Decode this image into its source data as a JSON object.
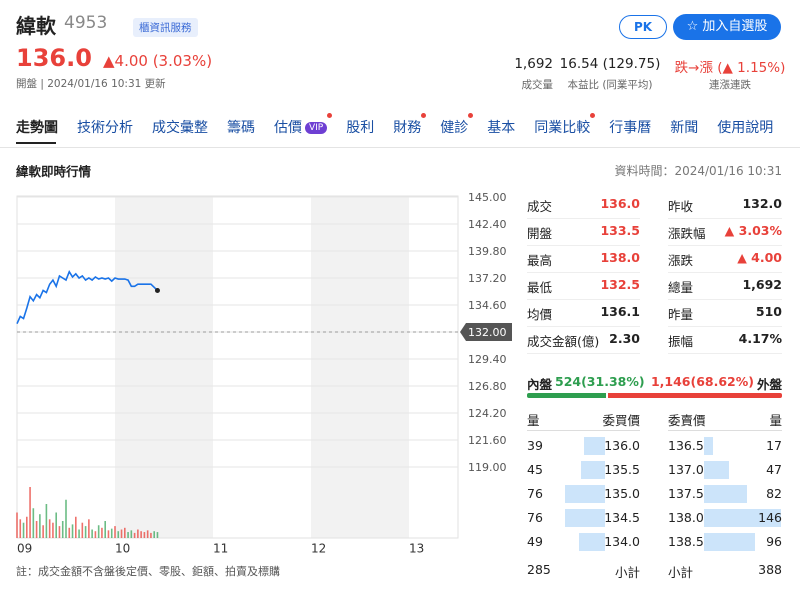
{
  "header": {
    "name": "緯軟",
    "code": "4953",
    "badge": "櫃資訊服務",
    "pk_button": "PK",
    "watch_button": "加入自選股",
    "price": "136.0",
    "change": "▲4.00 (3.03%)",
    "update": "開盤 | 2024/01/16 10:31 更新",
    "stats": [
      {
        "value": "1,692",
        "label": "成交量"
      },
      {
        "value": "16.54 (129.75)",
        "label": "本益比 (同業平均)"
      },
      {
        "value": "跌→漲 (▲ 1.15%)",
        "label": "連漲連跌",
        "color": "#e8413a"
      }
    ]
  },
  "tabs": [
    {
      "label": "走勢圖",
      "active": true
    },
    {
      "label": "技術分析"
    },
    {
      "label": "成交彙整"
    },
    {
      "label": "籌碼"
    },
    {
      "label": "估價",
      "badge": "VIP",
      "dot": true
    },
    {
      "label": "股利"
    },
    {
      "label": "財務",
      "dot": true
    },
    {
      "label": "健診",
      "dot": true
    },
    {
      "label": "基本"
    },
    {
      "label": "同業比較",
      "dot": true
    },
    {
      "label": "行事曆"
    },
    {
      "label": "新聞"
    },
    {
      "label": "使用說明"
    }
  ],
  "section": {
    "title": "緯軟即時行情",
    "time": "資料時間：2024/01/16 10:31"
  },
  "chart_data": {
    "type": "line",
    "x": [
      0,
      2,
      4,
      6,
      8,
      10,
      12,
      14,
      16,
      18,
      20,
      22,
      24,
      26,
      28,
      30,
      32,
      34,
      36,
      38,
      40,
      42,
      44,
      46,
      48,
      50,
      52,
      54,
      56,
      58,
      60,
      62,
      64,
      66,
      68,
      70,
      72,
      74,
      76,
      78,
      80,
      82,
      84,
      86
    ],
    "series": [
      {
        "name": "成交",
        "color": "#1a73e8",
        "values": [
          132.8,
          133.5,
          133.3,
          134.3,
          135.4,
          135.0,
          135.6,
          135.3,
          136.0,
          135.8,
          136.6,
          137.0,
          136.4,
          137.4,
          137.2,
          137.0,
          137.8,
          137.3,
          137.6,
          137.2,
          137.4,
          137.0,
          137.2,
          137.0,
          137.3,
          137.1,
          137.2,
          137.1,
          137.2,
          136.9,
          137.2,
          137.1,
          137.1,
          137.1,
          137.0,
          136.4,
          136.4,
          136.6,
          136.6,
          136.6,
          136.6,
          136.6,
          136.3,
          136.0
        ]
      },
      {
        "name": "成交量",
        "axis": "y2",
        "up_color": "#e8413a",
        "down_color": "#3ba55c",
        "values": [
          30,
          22,
          18,
          25,
          60,
          35,
          20,
          28,
          15,
          40,
          22,
          18,
          30,
          14,
          20,
          45,
          12,
          16,
          25,
          10,
          18,
          14,
          22,
          10,
          8,
          15,
          12,
          20,
          9,
          11,
          14,
          8,
          10,
          12,
          7,
          9,
          6,
          10,
          8,
          7,
          9,
          6,
          8,
          7
        ]
      }
    ],
    "xlim": [
      0,
      270
    ],
    "xticks": [
      {
        "value": 0,
        "label": "09"
      },
      {
        "value": 60,
        "label": "10"
      },
      {
        "value": 120,
        "label": "11"
      },
      {
        "value": 180,
        "label": "12"
      },
      {
        "value": 240,
        "label": "13"
      }
    ],
    "ylim": [
      119,
      145
    ],
    "yticks": [
      {
        "value": 145,
        "label": "145.00"
      },
      {
        "value": 142.4,
        "label": "142.40"
      },
      {
        "value": 139.8,
        "label": "139.80"
      },
      {
        "value": 137.2,
        "label": "137.20"
      },
      {
        "value": 134.6,
        "label": "134.60"
      },
      {
        "value": 132,
        "label": "132.00"
      },
      {
        "value": 129.4,
        "label": "129.40"
      },
      {
        "value": 126.8,
        "label": "126.80"
      },
      {
        "value": 124.2,
        "label": "124.20"
      },
      {
        "value": 121.6,
        "label": "121.60"
      },
      {
        "value": 119,
        "label": "119.00"
      }
    ],
    "reference": 132,
    "y2lim": [
      0,
      80
    ],
    "grid": true
  },
  "quote": {
    "rows": [
      [
        {
          "label": "成交",
          "value": "136.0",
          "color": "#e8413a"
        },
        {
          "label": "昨收",
          "value": "132.0"
        }
      ],
      [
        {
          "label": "開盤",
          "value": "133.5",
          "color": "#e8413a"
        },
        {
          "label": "漲跌幅",
          "value": "▲ 3.03%",
          "color": "#e8413a"
        }
      ],
      [
        {
          "label": "最高",
          "value": "138.0",
          "color": "#e8413a"
        },
        {
          "label": "漲跌",
          "value": "▲ 4.00",
          "color": "#e8413a"
        }
      ],
      [
        {
          "label": "最低",
          "value": "132.5",
          "color": "#e8413a"
        },
        {
          "label": "總量",
          "value": "1,692"
        }
      ],
      [
        {
          "label": "均價",
          "value": "136.1"
        },
        {
          "label": "昨量",
          "value": "510"
        }
      ],
      [
        {
          "label": "成交金額(億)",
          "value": "2.30"
        },
        {
          "label": "振幅",
          "value": "4.17%"
        }
      ]
    ]
  },
  "inout": {
    "inner_label": "內盤",
    "inner": "524(31.38%)",
    "inner_pct": 31.38,
    "outer": "1,146(68.62%)",
    "outer_pct": 68.62,
    "outer_label": "外盤"
  },
  "order_book": {
    "headers": [
      "量",
      "委買價",
      "委賣價",
      "量"
    ],
    "bids": [
      {
        "qty": 39,
        "price": "136.0"
      },
      {
        "qty": 45,
        "price": "135.5"
      },
      {
        "qty": 76,
        "price": "135.0"
      },
      {
        "qty": 76,
        "price": "134.5"
      },
      {
        "qty": 49,
        "price": "134.0"
      }
    ],
    "asks": [
      {
        "price": "136.5",
        "qty": 17
      },
      {
        "price": "137.0",
        "qty": 47
      },
      {
        "price": "137.5",
        "qty": 82
      },
      {
        "price": "138.0",
        "qty": 146
      },
      {
        "price": "138.5",
        "qty": 96
      }
    ],
    "bid_total": 285,
    "subtotal_label": "小計",
    "ask_total": 388
  },
  "footnote": "註：成交金額不含盤後定價、零股、鉅額、拍賣及標購"
}
